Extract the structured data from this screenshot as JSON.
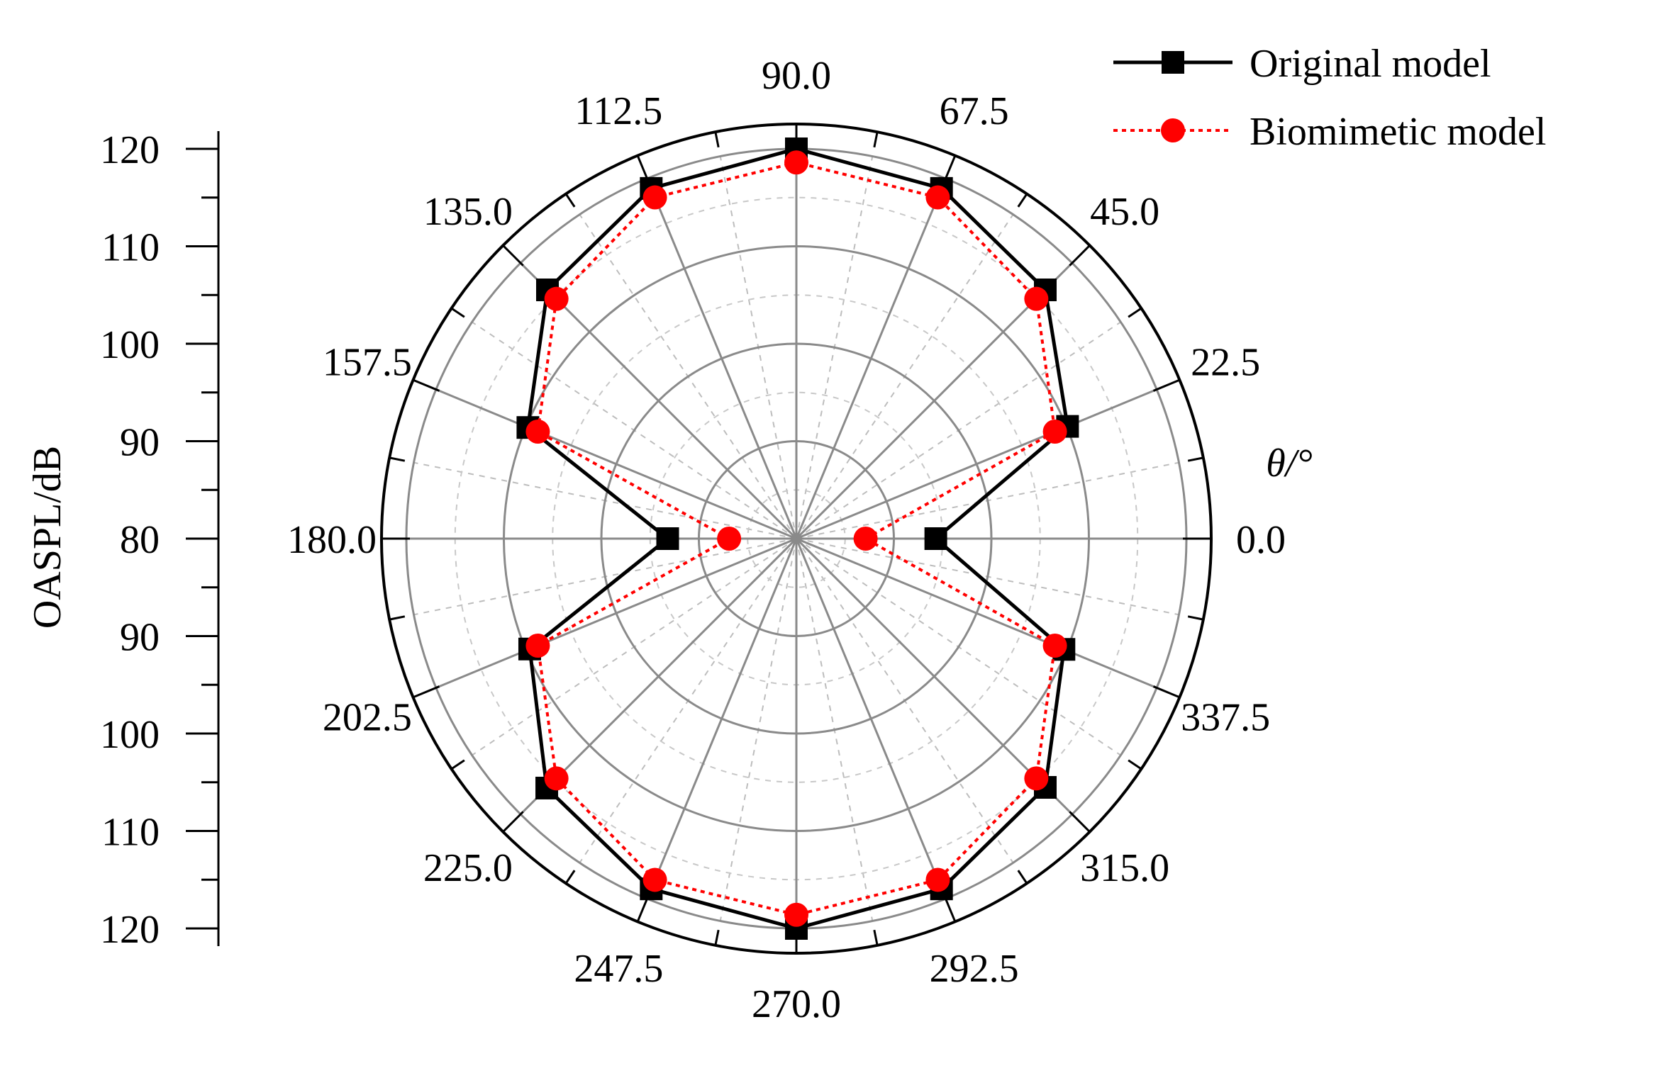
{
  "chart_data": {
    "type": "polar-line",
    "radial_axis_label": "OASPL/dB",
    "angular_axis_label": "θ/°",
    "radial_range": [
      80,
      120
    ],
    "radial_ticks": [
      120,
      110,
      100,
      90,
      80,
      90,
      100,
      110,
      120
    ],
    "angular_tick_labels": [
      "0.0",
      "22.5",
      "45.0",
      "67.5",
      "90.0",
      "112.5",
      "135.0",
      "157.5",
      "180.0",
      "202.5",
      "225.0",
      "247.5",
      "270.0",
      "292.5",
      "315.0",
      "337.5"
    ],
    "angles": [
      0,
      22.5,
      45,
      67.5,
      90,
      112.5,
      135,
      157.5,
      180,
      202.5,
      225,
      247.5,
      270,
      292.5,
      315,
      337.5
    ],
    "legend_position": "top-right",
    "grid": true,
    "series": [
      {
        "name": "Original model",
        "color": "#000000",
        "marker": "square",
        "line": "solid",
        "values": [
          94.3,
          110.1,
          116.1,
          118.9,
          120.0,
          118.9,
          116.1,
          109.8,
          93.2,
          109.6,
          116.2,
          118.9,
          120.0,
          118.9,
          116.1,
          109.7,
          94.3
        ]
      },
      {
        "name": "Biomimetic model",
        "color": "#ff0000",
        "marker": "circle",
        "line": "dotted",
        "values": [
          87.1,
          108.7,
          114.8,
          117.9,
          118.6,
          117.9,
          114.8,
          108.7,
          86.9,
          108.7,
          114.8,
          117.9,
          118.6,
          117.9,
          114.8,
          108.7,
          87.1
        ]
      }
    ]
  }
}
